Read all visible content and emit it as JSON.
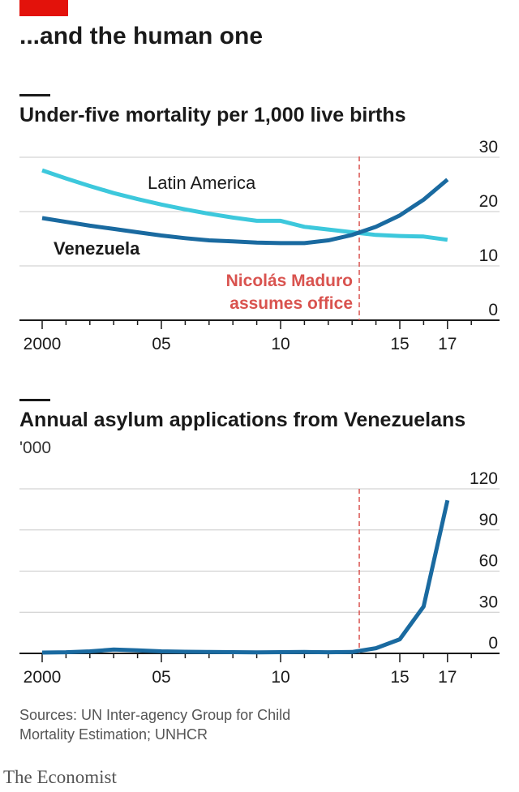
{
  "brand_color": "#e3120b",
  "headline": "...and the human one",
  "source": "Sources: UN Inter-agency Group for Child Mortality Estimation; UNHCR",
  "brand": "The Economist",
  "colors": {
    "latin_america": "#3dc8dc",
    "venezuela": "#1a6aa0",
    "asylum": "#1a6aa0",
    "annotation": "#d9534f",
    "grid": "#c8c8c8",
    "axis": "#1a1a1a"
  },
  "chart_data": [
    {
      "type": "line",
      "title": "Under-five mortality per 1,000 live births",
      "ylim": [
        0,
        30
      ],
      "yticks": [
        0,
        10,
        20,
        30
      ],
      "xlim": [
        2000,
        2018
      ],
      "xticks": [
        2000,
        2005,
        2010,
        2015,
        2017
      ],
      "xtick_labels": [
        "2000",
        "05",
        "10",
        "15",
        "17"
      ],
      "grid": true,
      "series": [
        {
          "name": "Latin America",
          "x": [
            2000,
            2001,
            2002,
            2003,
            2004,
            2005,
            2006,
            2007,
            2008,
            2009,
            2010,
            2011,
            2012,
            2013,
            2014,
            2015,
            2016,
            2017
          ],
          "values": [
            27.6,
            26.1,
            24.7,
            23.4,
            22.3,
            21.3,
            20.4,
            19.6,
            18.9,
            18.3,
            18.3,
            17.2,
            16.7,
            16.2,
            15.7,
            15.5,
            15.4,
            14.8
          ]
        },
        {
          "name": "Venezuela",
          "x": [
            2000,
            2001,
            2002,
            2003,
            2004,
            2005,
            2006,
            2007,
            2008,
            2009,
            2010,
            2011,
            2012,
            2013,
            2014,
            2015,
            2016,
            2017
          ],
          "values": [
            18.8,
            18.1,
            17.4,
            16.8,
            16.2,
            15.6,
            15.1,
            14.7,
            14.5,
            14.3,
            14.2,
            14.2,
            14.7,
            15.7,
            17.2,
            19.3,
            22.2,
            25.9
          ]
        }
      ],
      "annotation": {
        "x": 2013.3,
        "label_lines": [
          "Nicolás Maduro",
          "assumes office"
        ]
      }
    },
    {
      "type": "line",
      "title": "Annual asylum applications from Venezuelans",
      "unit": "'000",
      "ylim": [
        0,
        120
      ],
      "yticks": [
        0,
        30,
        60,
        90,
        120
      ],
      "xlim": [
        2000,
        2018
      ],
      "xticks": [
        2000,
        2005,
        2010,
        2015,
        2017
      ],
      "xtick_labels": [
        "2000",
        "05",
        "10",
        "15",
        "17"
      ],
      "grid": true,
      "series": [
        {
          "name": "Venezuela",
          "x": [
            2000,
            2001,
            2002,
            2003,
            2004,
            2005,
            2006,
            2007,
            2008,
            2009,
            2010,
            2011,
            2012,
            2013,
            2014,
            2015,
            2016,
            2017
          ],
          "values": [
            0.6,
            0.8,
            1.5,
            2.8,
            2.2,
            1.5,
            1.2,
            1.0,
            0.9,
            0.7,
            0.9,
            1.0,
            0.8,
            1.0,
            3.8,
            10.3,
            34.2,
            111.6
          ]
        }
      ],
      "annotation": {
        "x": 2013.3
      }
    }
  ]
}
